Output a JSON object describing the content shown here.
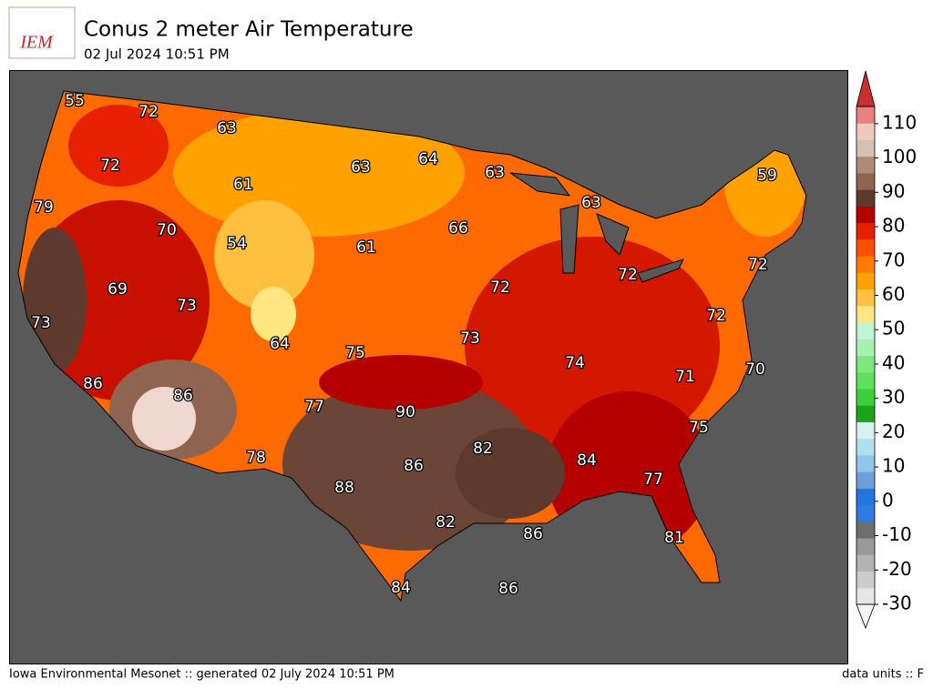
{
  "header": {
    "logo": "IEM",
    "title": "Conus 2 meter Air Temperature",
    "subtitle": "02 Jul 2024 10:51 PM"
  },
  "map": {
    "labels": [
      55,
      72,
      63,
      72,
      61,
      63,
      64,
      63,
      59,
      79,
      70,
      54,
      61,
      66,
      63,
      69,
      73,
      72,
      72,
      72,
      73,
      64,
      75,
      73,
      72,
      74,
      71,
      70,
      86,
      86,
      77,
      90,
      75,
      82,
      84,
      78,
      86,
      88,
      77,
      82,
      86,
      81,
      84,
      86
    ]
  },
  "colorbar": {
    "clim": [
      -30,
      115
    ],
    "ticks": [
      -30,
      -20,
      -10,
      0,
      10,
      20,
      30,
      40,
      50,
      60,
      70,
      80,
      90,
      100,
      110
    ],
    "colors": [
      "#e6e6e6",
      "#cccccc",
      "#b3b3b3",
      "#999999",
      "#6e6e6e",
      "#2f7be0",
      "#2276e0",
      "#6ea0d8",
      "#8fc5e8",
      "#b0dff0",
      "#d7f0f2",
      "#1aa31a",
      "#3ccf3c",
      "#5ee05e",
      "#7ee87e",
      "#a6f0b0",
      "#bff5d6",
      "#ffe680",
      "#ffc040",
      "#ffa200",
      "#ff7a00",
      "#ff5000",
      "#e62000",
      "#b40000",
      "#5e3a2e",
      "#8f6552",
      "#b08a78",
      "#d6bfb3",
      "#f0c8c0",
      "#e88080"
    ],
    "under": "#f4f4f4",
    "over": "#c83030"
  },
  "footer": {
    "left": "Iowa Environmental Mesonet :: generated 02 July 2024 10:51 PM",
    "right": "data units :: F"
  }
}
